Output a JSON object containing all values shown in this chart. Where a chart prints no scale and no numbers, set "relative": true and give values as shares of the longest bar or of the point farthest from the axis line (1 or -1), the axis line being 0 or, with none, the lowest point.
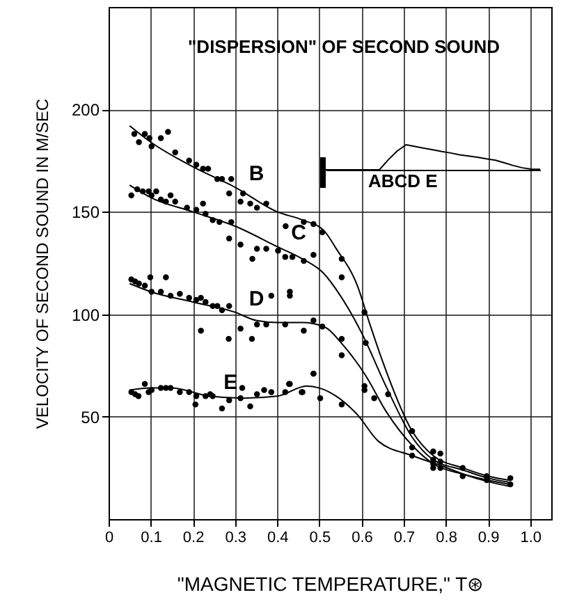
{
  "chart_data": [
    {
      "type": "scatter",
      "title": "\"DISPERSION\" OF SECOND SOUND",
      "xlabel": "\"MAGNETIC TEMPERATURE,\" T⊛",
      "ylabel": "VELOCITY OF SECOND SOUND IN M/SEC",
      "xlim": [
        0,
        1.05
      ],
      "ylim": [
        0,
        250
      ],
      "xticks": [
        {
          "value": 0,
          "label": "0"
        },
        0.1,
        0.2,
        0.3,
        0.4,
        0.5,
        0.6,
        0.7,
        0.8,
        0.9,
        {
          "value": 1,
          "label": "1.0"
        }
      ],
      "yticks": [
        50,
        100,
        150,
        200
      ],
      "grid": true,
      "line_style": "solid",
      "annotations": [
        {
          "text": "B",
          "x": 0.3,
          "y": 162
        },
        {
          "text": "C",
          "x": 0.4,
          "y": 133
        },
        {
          "text": "D",
          "x": 0.3,
          "y": 101
        },
        {
          "text": "E",
          "x": 0.24,
          "y": 60
        }
      ],
      "series": [
        {
          "type": "scatter",
          "marker": "circle",
          "color": "#000000",
          "x": [
            0.061,
            0.072,
            0.086,
            0.097,
            0.102,
            0.124,
            0.141,
            0.158,
            0.191,
            0.208,
            0.224,
            0.236,
            0.258,
            0.269,
            0.291,
            0.286,
            0.319,
            0.313,
            0.336,
            0.374,
            0.352,
            0.42,
            0.463,
            0.486,
            0.507,
            0.607,
            0.61,
            0.663,
            0.72,
            0.054,
            0.068,
            0.081,
            0.095,
            0.102,
            0.113,
            0.124,
            0.136,
            0.147,
            0.158,
            0.186,
            0.208,
            0.224,
            0.23,
            0.247,
            0.263,
            0.291,
            0.286,
            0.313,
            0.341,
            0.352,
            0.374,
            0.402,
            0.419,
            0.436,
            0.463,
            0.486,
            0.553,
            0.553,
            0.43,
            0.054,
            0.063,
            0.072,
            0.086,
            0.099,
            0.102,
            0.136,
            0.124,
            0.147,
            0.169,
            0.191,
            0.208,
            0.219,
            0.23,
            0.247,
            0.258,
            0.269,
            0.286,
            0.386,
            0.43,
            0.219,
            0.285,
            0.313,
            0.34,
            0.352,
            0.374,
            0.419,
            0.463,
            0.486,
            0.507,
            0.553,
            0.553,
            0.486,
            0.607,
            0.63,
            0.054,
            0.063,
            0.071,
            0.086,
            0.095,
            0.102,
            0.124,
            0.136,
            0.147,
            0.169,
            0.191,
            0.208,
            0.206,
            0.23,
            0.241,
            0.247,
            0.269,
            0.286,
            0.313,
            0.317,
            0.336,
            0.352,
            0.369,
            0.386,
            0.419,
            0.428,
            0.458,
            0.486,
            0.502,
            0.43,
            0.46,
            0.553,
            0.607,
            0.72,
            0.72,
            0.77,
            0.77,
            0.77,
            0.77,
            0.787,
            0.787,
            0.787,
            0.84,
            0.84,
            0.897,
            0.897,
            0.953,
            0.953
          ],
          "values": [
            188,
            184,
            188,
            186,
            182,
            186,
            189,
            179,
            175,
            173,
            171,
            171,
            166,
            166,
            166,
            159,
            159,
            155,
            154,
            154,
            152,
            143,
            145,
            144,
            140,
            101,
            86,
            61,
            43,
            158,
            161,
            160,
            160,
            158,
            160,
            156,
            155,
            158,
            155,
            152,
            151,
            154,
            149,
            146,
            145,
            145,
            137,
            134,
            127,
            132,
            132,
            131,
            128,
            128,
            126,
            129,
            127,
            118,
            109,
            117,
            116,
            115,
            114,
            118,
            111,
            118,
            111,
            109,
            110,
            108,
            107,
            108,
            106,
            104,
            104,
            102,
            104,
            109,
            111,
            92,
            88,
            93,
            88,
            95,
            95,
            95,
            92,
            97,
            94,
            88,
            80,
            71,
            65,
            59,
            62,
            61,
            60,
            66,
            62,
            63,
            64,
            64,
            64,
            62,
            62,
            60,
            56,
            60,
            61,
            60,
            54,
            58,
            59,
            64,
            55,
            61,
            63,
            62,
            62,
            66,
            62,
            71,
            59,
            66,
            62,
            56,
            63,
            31,
            35,
            33,
            29,
            27,
            25,
            32,
            28,
            25,
            25,
            21,
            21,
            19,
            20,
            17
          ]
        },
        {
          "type": "line",
          "marker": "none",
          "color": "#000000",
          "x": [
            0.05,
            0.1,
            0.2,
            0.3,
            0.4,
            0.46,
            0.51,
            0.54,
            0.59,
            0.62,
            0.65,
            0.72,
            0.77,
            0.84,
            0.9,
            0.95
          ],
          "values": [
            192,
            184,
            172,
            162,
            150,
            146,
            141,
            132,
            114,
            95,
            77,
            43,
            31,
            25,
            21,
            19
          ]
        },
        {
          "type": "line",
          "marker": "none",
          "color": "#000000",
          "x": [
            0.05,
            0.1,
            0.2,
            0.3,
            0.4,
            0.46,
            0.51,
            0.55,
            0.6,
            0.66,
            0.72,
            0.77,
            0.84,
            0.9,
            0.95
          ],
          "values": [
            163,
            157,
            150,
            143,
            133,
            127,
            120,
            109,
            91,
            64,
            40,
            29,
            24,
            20,
            18
          ]
        },
        {
          "type": "line",
          "marker": "none",
          "color": "#000000",
          "x": [
            0.05,
            0.1,
            0.2,
            0.3,
            0.35,
            0.4,
            0.46,
            0.51,
            0.56,
            0.61,
            0.66,
            0.72,
            0.77,
            0.84,
            0.9,
            0.95
          ],
          "values": [
            115,
            111,
            106,
            101,
            97,
            96,
            96,
            94,
            84,
            70,
            52,
            36,
            27,
            22,
            19,
            17
          ]
        },
        {
          "type": "line",
          "marker": "none",
          "color": "#000000",
          "x": [
            0.05,
            0.1,
            0.15,
            0.24,
            0.32,
            0.4,
            0.47,
            0.5,
            0.54,
            0.59,
            0.64,
            0.72,
            0.79,
            0.87,
            0.95
          ],
          "values": [
            63,
            64,
            64,
            60,
            59,
            60,
            65,
            64,
            60,
            51,
            38,
            31,
            26,
            20,
            16
          ]
        }
      ]
    },
    {
      "type": "line",
      "relative": true,
      "annotations": [
        "ABCD E"
      ],
      "categories": [
        null,
        null,
        null,
        null,
        null,
        null,
        null,
        null,
        null,
        null,
        null,
        null,
        null,
        null,
        null,
        null,
        null,
        null,
        null,
        null,
        null,
        null,
        null,
        null,
        null
      ],
      "series": [
        {
          "color": "#000000",
          "values": [
            0,
            0,
            0,
            0,
            0,
            0,
            0,
            0.4,
            0.75,
            1,
            0.93,
            0.86,
            0.8,
            0.73,
            0.67,
            0.6,
            0.55,
            0.5,
            0.44,
            0.38,
            0.28,
            0.17,
            0.08,
            0.03,
            0.02
          ]
        }
      ]
    }
  ]
}
